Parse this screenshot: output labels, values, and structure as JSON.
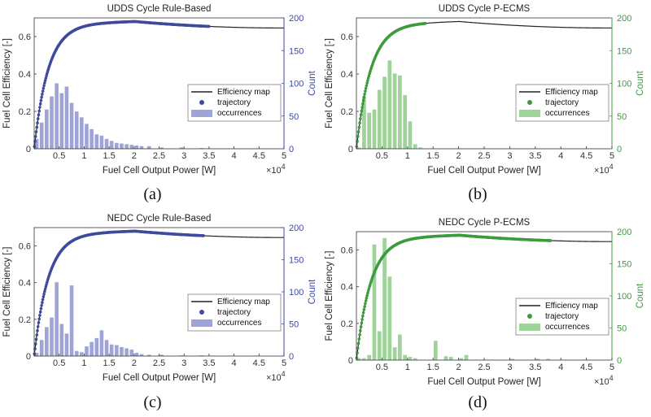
{
  "chart_data": [
    {
      "panel": "(a)",
      "type": "line",
      "title": "UDDS Cycle Rule-Based",
      "xlabel": "Fuel Cell Output Power [W]",
      "ylabel": "Fuel Cell Efficiency [-]",
      "y2label": "Count",
      "x_multiplier": "×10^4",
      "xlim": [
        0,
        5
      ],
      "ylim": [
        0,
        0.7
      ],
      "y2lim": [
        0,
        200
      ],
      "x_ticks": [
        "0.5",
        "1",
        "1.5",
        "2",
        "2.5",
        "3",
        "3.5",
        "4",
        "4.5",
        "5"
      ],
      "y_ticks": [
        "0",
        "0.2",
        "0.4",
        "0.6"
      ],
      "y2_ticks": [
        "0",
        "50",
        "100",
        "150",
        "200"
      ],
      "accent": "#3f4a9c",
      "legend": [
        "Efficiency map",
        "trajectory",
        "occurrences"
      ],
      "legend_position": "right",
      "trajectory_x_range": [
        0,
        3.5
      ],
      "hist_bin_centers": [
        0.05,
        0.15,
        0.25,
        0.35,
        0.45,
        0.55,
        0.65,
        0.75,
        0.85,
        0.95,
        1.05,
        1.15,
        1.25,
        1.35,
        1.45,
        1.55,
        1.65,
        1.75,
        1.85,
        1.95,
        2.05,
        2.15,
        2.3,
        2.55,
        2.95,
        3.35
      ],
      "hist_counts": [
        15,
        40,
        60,
        80,
        100,
        85,
        95,
        70,
        57,
        48,
        38,
        30,
        22,
        20,
        15,
        12,
        9,
        8,
        7,
        6,
        5,
        4,
        4,
        2,
        2,
        1
      ]
    },
    {
      "panel": "(b)",
      "type": "line",
      "title": "UDDS Cycle P-ECMS",
      "xlabel": "Fuel Cell Output Power [W]",
      "ylabel": "Fuel Cell Efficiency [-]",
      "y2label": "Count",
      "x_multiplier": "×10^4",
      "xlim": [
        0,
        5
      ],
      "ylim": [
        0,
        0.7
      ],
      "y2lim": [
        0,
        200
      ],
      "x_ticks": [
        "0.5",
        "1",
        "1.5",
        "2",
        "2.5",
        "3",
        "3.5",
        "4",
        "4.5",
        "5"
      ],
      "y_ticks": [
        "0",
        "0.2",
        "0.4",
        "0.6"
      ],
      "y2_ticks": [
        "0",
        "50",
        "100",
        "150",
        "200"
      ],
      "accent": "#3d9b3d",
      "legend": [
        "Efficiency map",
        "trajectory",
        "occurrences"
      ],
      "legend_position": "right",
      "trajectory_x_range": [
        0,
        1.35
      ],
      "hist_bin_centers": [
        0.05,
        0.15,
        0.25,
        0.35,
        0.45,
        0.55,
        0.65,
        0.75,
        0.85,
        0.95,
        1.05,
        1.15,
        1.25
      ],
      "hist_counts": [
        2,
        80,
        55,
        60,
        90,
        110,
        135,
        115,
        112,
        82,
        42,
        7,
        2
      ]
    },
    {
      "panel": "(c)",
      "type": "line",
      "title": "NEDC Cycle Rule-Based",
      "xlabel": "Fuel Cell Output Power [W]",
      "ylabel": "Fuel Cell Efficiency [-]",
      "y2label": "Count",
      "x_multiplier": "×10^4",
      "xlim": [
        0,
        5
      ],
      "ylim": [
        0,
        0.7
      ],
      "y2lim": [
        0,
        200
      ],
      "x_ticks": [
        "0.5",
        "1",
        "1.5",
        "2",
        "2.5",
        "3",
        "3.5",
        "4",
        "4.5",
        "5"
      ],
      "y_ticks": [
        "0",
        "0.2",
        "0.4",
        "0.6"
      ],
      "y2_ticks": [
        "0",
        "50",
        "100",
        "150",
        "200"
      ],
      "accent": "#3f4a9c",
      "legend": [
        "Efficiency map",
        "trajectory",
        "occurrences"
      ],
      "legend_position": "right",
      "trajectory_x_range": [
        0,
        3.4
      ],
      "hist_bin_centers": [
        0.05,
        0.15,
        0.25,
        0.35,
        0.45,
        0.55,
        0.65,
        0.75,
        0.85,
        0.95,
        1.05,
        1.15,
        1.25,
        1.35,
        1.45,
        1.55,
        1.65,
        1.75,
        1.85,
        1.95,
        2.05,
        2.15,
        2.3,
        2.55,
        2.95,
        3.35
      ],
      "hist_counts": [
        5,
        25,
        45,
        60,
        115,
        50,
        35,
        110,
        8,
        6,
        15,
        22,
        28,
        40,
        25,
        18,
        17,
        14,
        12,
        10,
        5,
        3,
        2,
        2,
        1,
        1
      ]
    },
    {
      "panel": "(d)",
      "type": "line",
      "title": "NEDC Cycle P-ECMS",
      "xlabel": "Fuel Cell Output Power [W]",
      "ylabel": "Fuel Cell Efficiency [-]",
      "y2label": "Count",
      "x_multiplier": "×10^4",
      "xlim": [
        0,
        5
      ],
      "ylim": [
        0,
        0.7
      ],
      "y2lim": [
        0,
        200
      ],
      "x_ticks": [
        "0.5",
        "1",
        "1.5",
        "2",
        "2.5",
        "3",
        "3.5",
        "4",
        "4.5",
        "5"
      ],
      "y_ticks": [
        "0",
        "0.2",
        "0.4",
        "0.6"
      ],
      "y2_ticks": [
        "0",
        "50",
        "100",
        "150",
        "200"
      ],
      "accent": "#3d9b3d",
      "legend": [
        "Efficiency map",
        "trajectory",
        "occurrences"
      ],
      "legend_position": "right",
      "trajectory_x_range": [
        0,
        3.8
      ],
      "hist_bin_centers": [
        0.05,
        0.15,
        0.25,
        0.35,
        0.45,
        0.55,
        0.65,
        0.75,
        0.85,
        0.95,
        1.05,
        1.15,
        1.55,
        1.75,
        1.85,
        2.05,
        2.15,
        3.05,
        3.55,
        3.75
      ],
      "hist_counts": [
        3,
        3,
        8,
        180,
        45,
        190,
        130,
        20,
        40,
        8,
        5,
        3,
        30,
        6,
        5,
        3,
        8,
        2,
        2,
        2
      ]
    }
  ]
}
